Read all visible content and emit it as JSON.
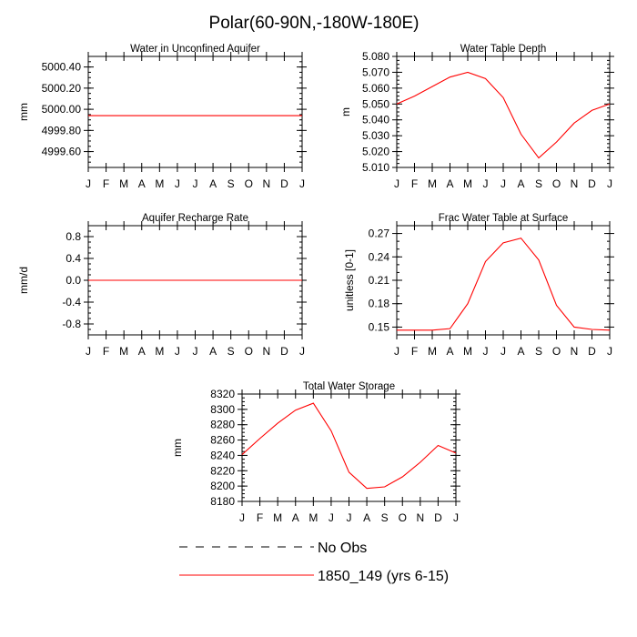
{
  "page_title": "Polar(60-90N,-180W-180E)",
  "months": [
    "J",
    "F",
    "M",
    "A",
    "M",
    "J",
    "J",
    "A",
    "S",
    "O",
    "N",
    "D",
    "J"
  ],
  "series_color": "#ff0000",
  "legend": {
    "obs_label": "No Obs",
    "model_label": "1850_149 (yrs 6-15)"
  },
  "chart_data": [
    {
      "type": "line",
      "title": "Water in Unconfined Aquifer",
      "ylabel": "mm",
      "ylim": [
        4999.45,
        5000.5
      ],
      "yticks": [
        5000.4,
        5000.2,
        5000.0,
        4999.8,
        4999.6
      ],
      "yticklabels": [
        "5000.40",
        "5000.20",
        "5000.00",
        "4999.80",
        "4999.60"
      ],
      "yminor": 0.05,
      "values": [
        4999.94,
        4999.94,
        4999.94,
        4999.94,
        4999.94,
        4999.94,
        4999.94,
        4999.94,
        4999.94,
        4999.94,
        4999.94,
        4999.94,
        4999.94
      ]
    },
    {
      "type": "line",
      "title": "Water Table Depth",
      "ylabel": "m",
      "ylim": [
        5.01,
        5.08
      ],
      "yticks": [
        5.08,
        5.07,
        5.06,
        5.05,
        5.04,
        5.03,
        5.02,
        5.01
      ],
      "yticklabels": [
        "5.080",
        "5.070",
        "5.060",
        "5.050",
        "5.040",
        "5.030",
        "5.020",
        "5.010"
      ],
      "yminor": 0.0025,
      "values": [
        5.05,
        5.055,
        5.061,
        5.067,
        5.07,
        5.066,
        5.054,
        5.031,
        5.016,
        5.026,
        5.038,
        5.046,
        5.05
      ]
    },
    {
      "type": "line",
      "title": "Aquifer Recharge Rate",
      "ylabel": "mm/d",
      "ylim": [
        -1.0,
        1.0
      ],
      "yticks": [
        0.8,
        0.4,
        0.0,
        -0.4,
        -0.8
      ],
      "yticklabels": [
        "0.8",
        "0.4",
        "0.0",
        "-0.4",
        "-0.8"
      ],
      "yminor": 0.1,
      "values": [
        0,
        0,
        0,
        0,
        0,
        0,
        0,
        0,
        0,
        0,
        0,
        0,
        0
      ]
    },
    {
      "type": "line",
      "title": "Frac Water Table at Surface",
      "ylabel": "unitless [0-1]",
      "ylim": [
        0.14,
        0.28
      ],
      "yticks": [
        0.27,
        0.24,
        0.21,
        0.18,
        0.15
      ],
      "yticklabels": [
        "0.27",
        "0.24",
        "0.21",
        "0.18",
        "0.15"
      ],
      "yminor": 0.01,
      "values": [
        0.146,
        0.146,
        0.146,
        0.148,
        0.18,
        0.234,
        0.258,
        0.264,
        0.236,
        0.178,
        0.15,
        0.147,
        0.146
      ]
    },
    {
      "type": "line",
      "title": "Total Water Storage",
      "ylabel": "mm",
      "ylim": [
        8180,
        8320
      ],
      "yticks": [
        8320,
        8300,
        8280,
        8260,
        8240,
        8220,
        8200,
        8180
      ],
      "yticklabels": [
        "8320",
        "8300",
        "8280",
        "8260",
        "8240",
        "8220",
        "8200",
        "8180"
      ],
      "yminor": 5,
      "values": [
        8241,
        8262,
        8282,
        8299,
        8308,
        8272,
        8218,
        8197,
        8199,
        8212,
        8231,
        8253,
        8243
      ]
    }
  ]
}
